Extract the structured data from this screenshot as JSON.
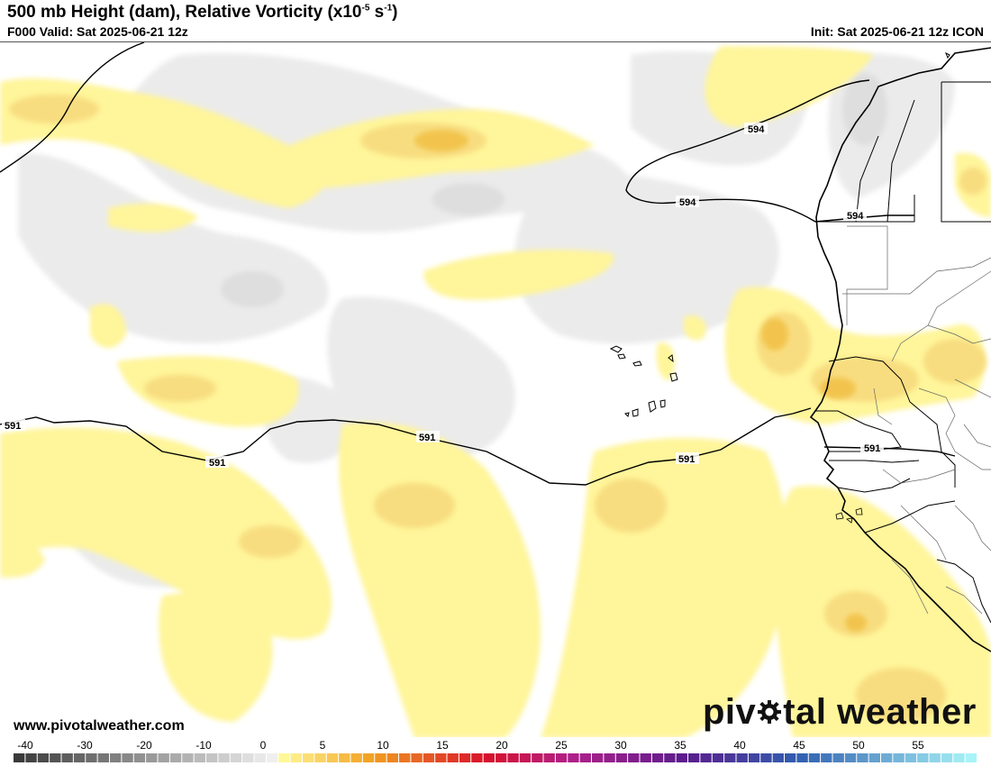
{
  "header": {
    "title_main": "500 mb Height (dam), Relative Vorticity (x10",
    "title_exp": "-5",
    "title_unit": " s",
    "title_unit_exp": "-1",
    "title_close": ")",
    "valid": "F000 Valid: Sat 2025-06-21 12z",
    "init": "Init: Sat 2025-06-21 12z ICON"
  },
  "contour_labels": {
    "c594a": "594",
    "c594b": "594",
    "c594c": "594",
    "c591a": "591",
    "c591b": "591",
    "c591c": "591",
    "c591d": "591",
    "c591e": "591"
  },
  "footer": {
    "url": "www.pivotalweather.com",
    "brand_left": "piv",
    "brand_right": "tal weather"
  },
  "colorbar": {
    "ticks": [
      "-40",
      "-30",
      "-20",
      "-10",
      "0",
      "5",
      "10",
      "15",
      "20",
      "25",
      "30",
      "35",
      "40",
      "45",
      "50",
      "55"
    ],
    "colors": {
      "negative_dark": "#3a3a3a",
      "negative_light": "#f2f2f2",
      "yellow": "#fffb9a",
      "orange": "#f2a020",
      "red": "#d8102a",
      "magenta": "#b0208a",
      "purple": "#5a1c8c",
      "blue": "#3060b0",
      "cyan": "#a8f4f8"
    }
  },
  "map_colors": {
    "land_outline": "#000000",
    "light_vort": "#fff59a",
    "mid_vort": "#f8dd80",
    "strong_vort": "#f2c44e",
    "neg_vort": "#ececec"
  }
}
